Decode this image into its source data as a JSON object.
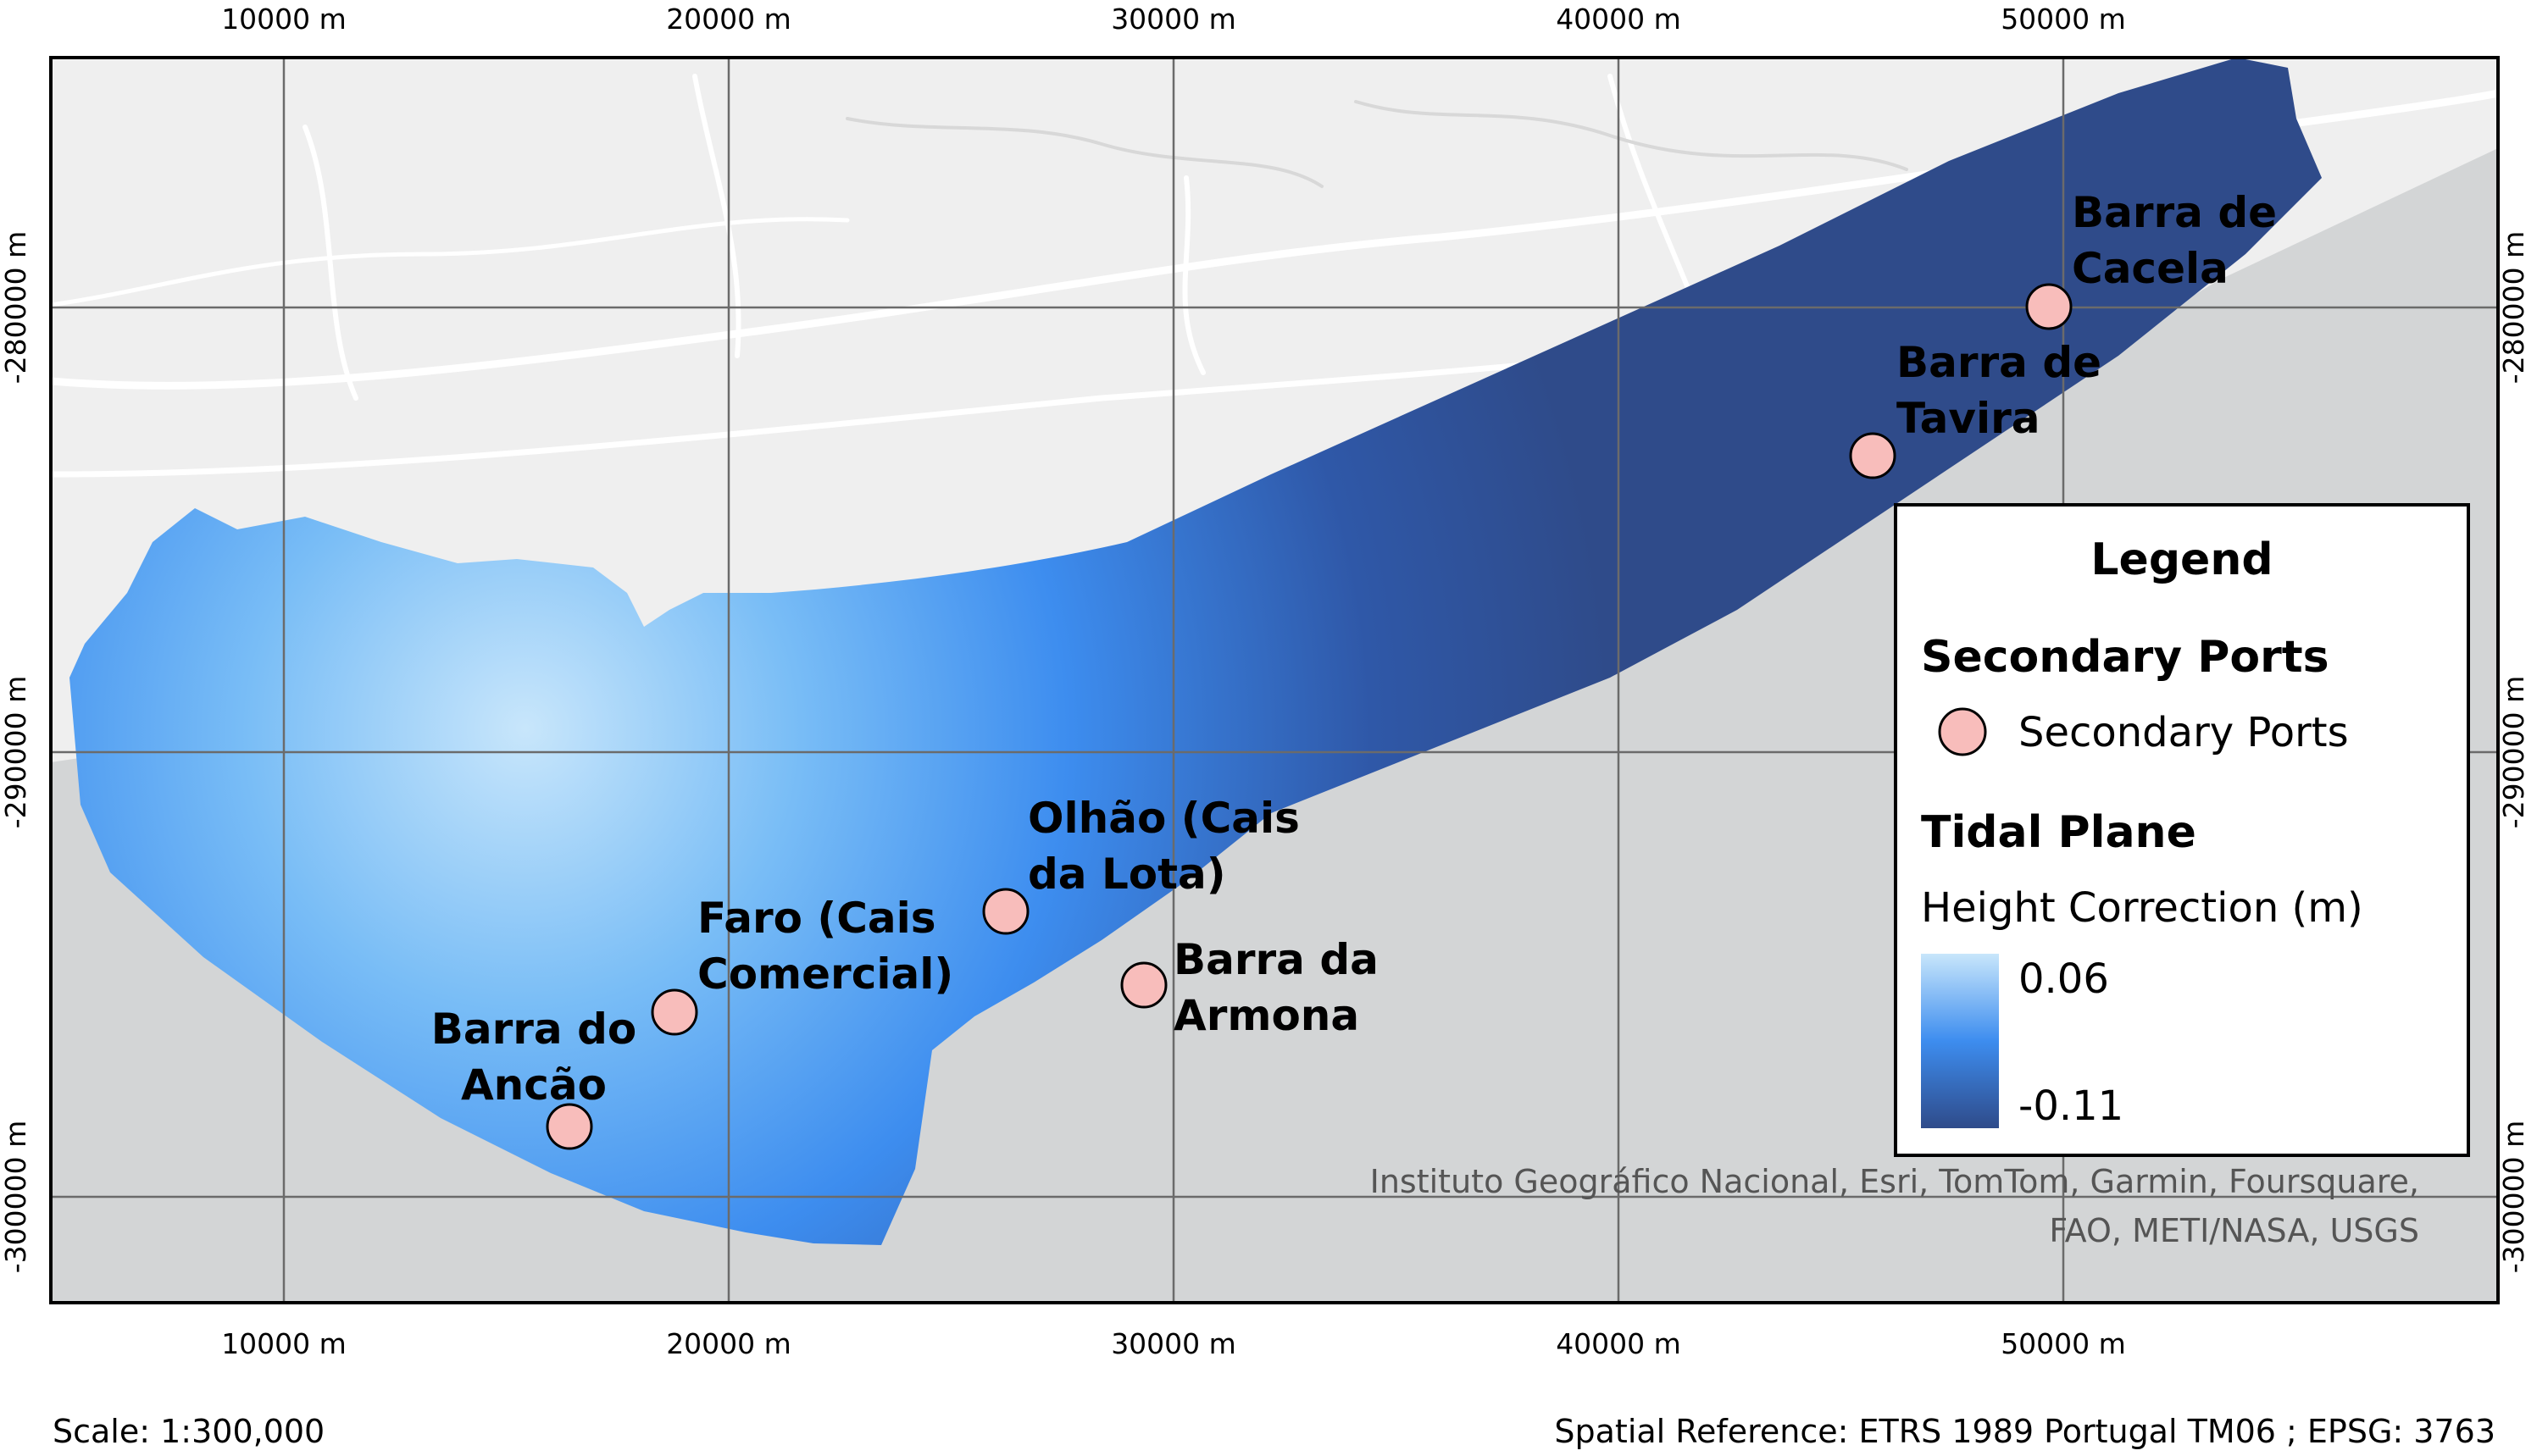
{
  "map": {
    "x_ticks": [
      "10000 m",
      "20000 m",
      "30000 m",
      "40000 m",
      "50000 m"
    ],
    "y_ticks": [
      "-280000 m",
      "-290000 m",
      "-300000 m"
    ],
    "ports": [
      {
        "name_lines": [
          "Barra de",
          "Cacela"
        ]
      },
      {
        "name_lines": [
          "Barra de",
          "Tavira"
        ]
      },
      {
        "name_lines": [
          "Olhão (Cais",
          "da Lota)"
        ]
      },
      {
        "name_lines": [
          "Faro (Cais",
          "Comercial)"
        ]
      },
      {
        "name_lines": [
          "Barra da",
          "Armona"
        ]
      },
      {
        "name_lines": [
          "Barra do",
          "Ancão"
        ]
      }
    ],
    "credits_lines": [
      "Instituto Geográfico Nacional, Esri, TomTom, Garmin, Foursquare,",
      "FAO, METI/NASA, USGS"
    ],
    "colors": {
      "land": "#efefef",
      "sea": "#d3d5d6",
      "roads": "#ffffff",
      "port_marker": "#f8bdbb",
      "ramp_high": "#c8e6fb",
      "ramp_mid": "#3d8def",
      "ramp_low": "#2f4b8a"
    }
  },
  "legend": {
    "title": "Legend",
    "section_ports": "Secondary Ports",
    "ports_item": "Secondary Ports",
    "section_tidal": "Tidal Plane",
    "tidal_subtitle": "Height Correction (m)",
    "ramp_max": "0.06",
    "ramp_min": "-0.11"
  },
  "footer": {
    "scale": "Scale: 1:300,000",
    "spatial_reference": "Spatial Reference: ETRS 1989 Portugal TM06 ; EPSG: 3763"
  }
}
